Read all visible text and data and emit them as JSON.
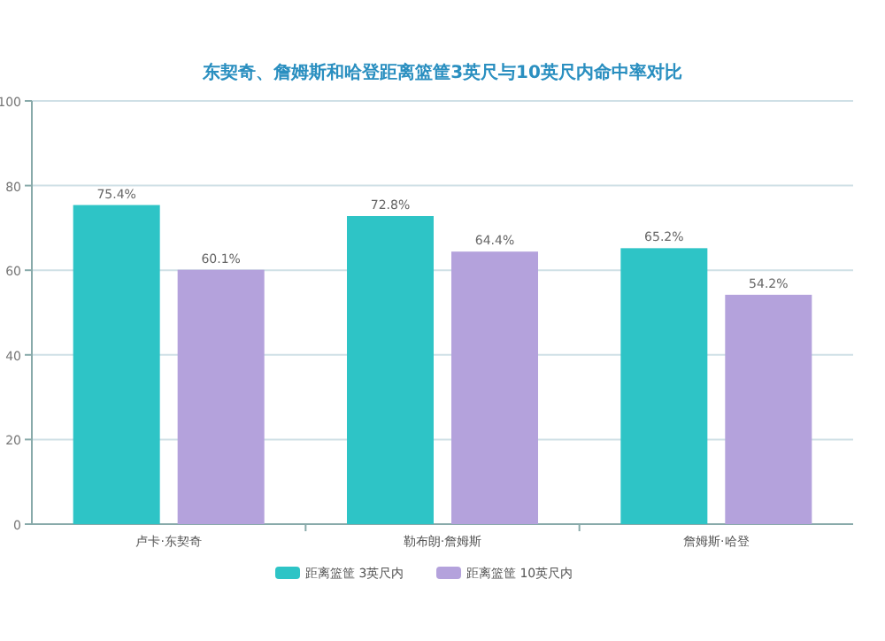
{
  "chart_data": {
    "type": "bar",
    "title": "东契奇、詹姆斯和哈登距离篮筐3英尺与10英尺内命中率对比",
    "categories": [
      "卢卡·东契奇",
      "勒布朗·詹姆斯",
      "詹姆斯·哈登"
    ],
    "series": [
      {
        "name": "距离篮筐 3英尺内",
        "color": "#2ec4c6",
        "values": [
          75.4,
          72.8,
          65.2
        ],
        "value_labels": [
          "75.4%",
          "72.8%",
          "65.2%"
        ]
      },
      {
        "name": "距离篮筐 10英尺内",
        "color": "#b4a2dc",
        "values": [
          60.1,
          64.4,
          54.2
        ],
        "value_labels": [
          "60.1%",
          "64.4%",
          "54.2%"
        ]
      }
    ],
    "ylim": [
      0,
      100
    ],
    "yticks": [
      0,
      20,
      40,
      60,
      80,
      100
    ],
    "grid": "y",
    "legend": "bottom"
  }
}
